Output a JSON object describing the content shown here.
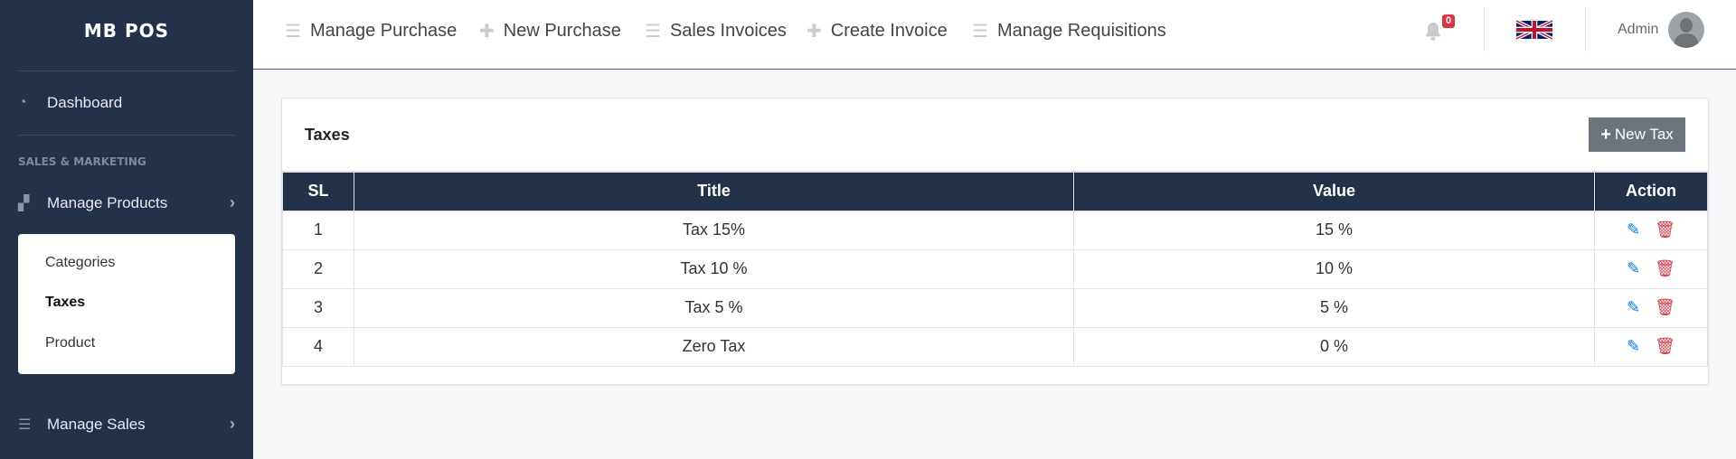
{
  "sidebar": {
    "brand": "MB POS",
    "dashboard": "Dashboard",
    "section": "SALES & MARKETING",
    "manage_products": "Manage Products",
    "submenu": [
      "Categories",
      "Taxes",
      "Product"
    ],
    "manage_sales": "Manage Sales"
  },
  "topnav": {
    "items": [
      "Manage Purchase",
      "New Purchase",
      "Sales Invoices",
      "Create Invoice",
      "Manage Requisitions"
    ],
    "notification_count": "0",
    "user": "Admin"
  },
  "card": {
    "title": "Taxes",
    "new_button": "New Tax"
  },
  "table": {
    "headers": [
      "SL",
      "Title",
      "Value",
      "Action"
    ],
    "rows": [
      [
        "1",
        "Tax 15%",
        "15 %"
      ],
      [
        "2",
        "Tax 10 %",
        "10 %"
      ],
      [
        "3",
        "Tax 5 %",
        "5 %"
      ],
      [
        "4",
        "Zero Tax",
        "0 %"
      ]
    ]
  },
  "colors": {
    "sidebar": "#24314b",
    "accent": "#6f42c1",
    "edit": "#007bff",
    "delete": "#dc3545",
    "button": "#6c757d"
  }
}
